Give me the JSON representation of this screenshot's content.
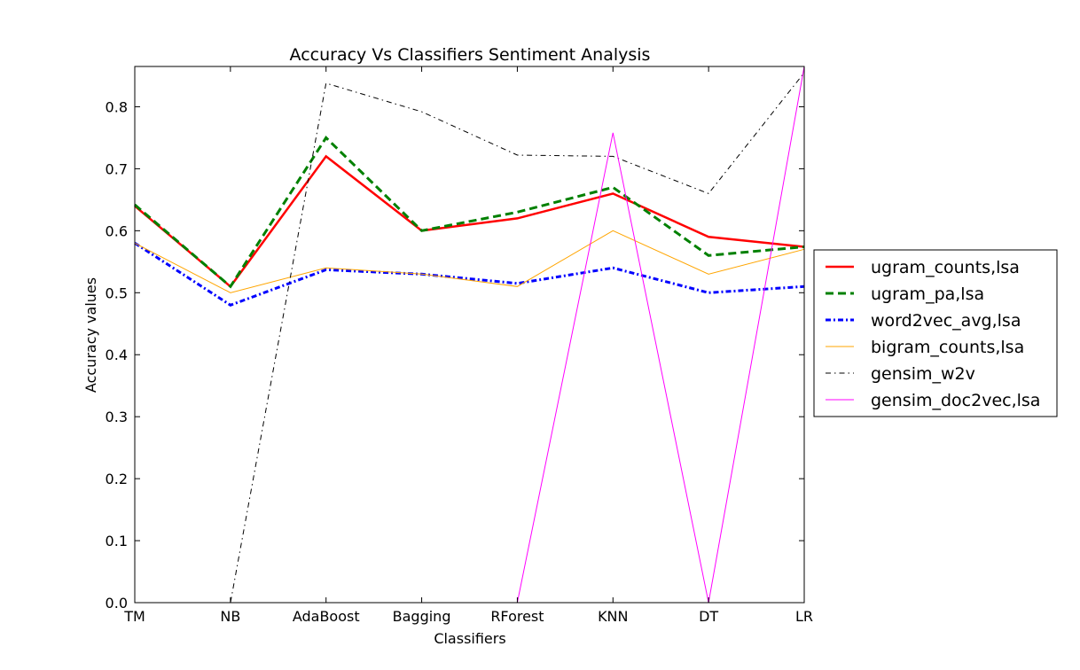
{
  "chart_data": {
    "type": "line",
    "title": "Accuracy Vs Classifiers Sentiment Analysis",
    "xlabel": "Classifiers",
    "ylabel": "Accuracy values",
    "categories": [
      "TM",
      "NB",
      "AdaBoost",
      "Bagging",
      "RForest",
      "KNN",
      "DT",
      "LR"
    ],
    "ylim": [
      0,
      0.865
    ],
    "yticks": [
      "0.0",
      "0.1",
      "0.2",
      "0.3",
      "0.4",
      "0.5",
      "0.6",
      "0.7",
      "0.8"
    ],
    "grid": false,
    "legend_position": "right",
    "series": [
      {
        "name": "ugram_counts,lsa",
        "color": "#ff0000",
        "style": "solid-thick",
        "values": [
          0.64,
          0.51,
          0.72,
          0.6,
          0.62,
          0.66,
          0.59,
          0.574
        ]
      },
      {
        "name": "ugram_pa,lsa",
        "color": "#008000",
        "style": "dashed",
        "values": [
          0.642,
          0.51,
          0.75,
          0.6,
          0.63,
          0.67,
          0.56,
          0.574
        ]
      },
      {
        "name": "word2vec_avg,lsa",
        "color": "#0000ff",
        "style": "dashdot-thick",
        "values": [
          0.58,
          0.48,
          0.537,
          0.53,
          0.515,
          0.54,
          0.5,
          0.51
        ]
      },
      {
        "name": "bigram_counts,lsa",
        "color": "#ffa500",
        "style": "solid-thin",
        "values": [
          0.58,
          0.5,
          0.54,
          0.53,
          0.51,
          0.6,
          0.53,
          0.57
        ]
      },
      {
        "name": "gensim_w2v",
        "color": "#000000",
        "style": "dashdot-thin",
        "values": [
          0.0,
          0.0,
          0.838,
          0.792,
          0.722,
          0.72,
          0.66,
          0.855
        ]
      },
      {
        "name": "gensim_doc2vec,lsa",
        "color": "#ff00ff",
        "style": "solid-thin",
        "values": [
          0.0,
          0.0,
          0.0,
          0.0,
          0.0,
          0.758,
          0.0,
          0.865
        ]
      }
    ]
  }
}
